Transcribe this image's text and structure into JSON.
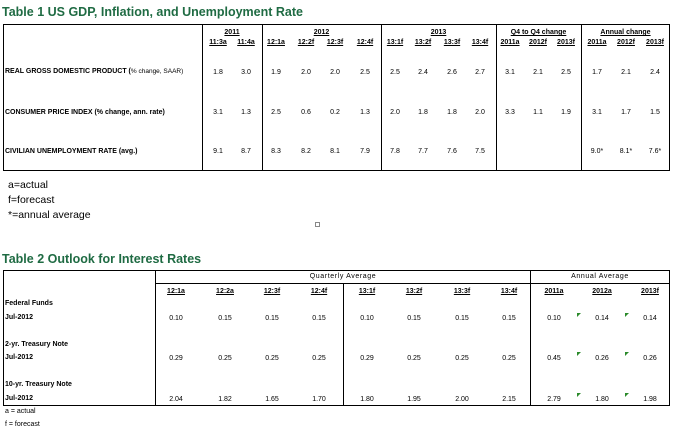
{
  "t1": {
    "title": "Table 1 US GDP, Inflation, and Unemployment Rate",
    "years": [
      "2011",
      "2012",
      "2013"
    ],
    "q4_group": "Q4 to Q4 change",
    "annual_group": "Annual change",
    "cols": [
      "11:3a",
      "11:4a",
      "12:1a",
      "12:2f",
      "12:3f",
      "12:4f",
      "13:1f",
      "13:2f",
      "13:3f",
      "13:4f",
      "2011a",
      "2012f",
      "2013f",
      "2011a",
      "2012f",
      "2013f"
    ],
    "rows": [
      {
        "label": "REAL GROSS DOMESTIC PRODUCT (",
        "sub": "% change, SAAR)",
        "values": [
          "1.8",
          "3.0",
          "1.9",
          "2.0",
          "2.0",
          "2.5",
          "2.5",
          "2.4",
          "2.6",
          "2.7",
          "3.1",
          "2.1",
          "2.5",
          "1.7",
          "2.1",
          "2.4"
        ]
      },
      {
        "label": "CONSUMER PRICE INDEX (% change, ann. rate)",
        "sub": "",
        "values": [
          "3.1",
          "1.3",
          "2.5",
          "0.6",
          "0.2",
          "1.3",
          "2.0",
          "1.8",
          "1.8",
          "2.0",
          "3.3",
          "1.1",
          "1.9",
          "3.1",
          "1.7",
          "1.5"
        ]
      },
      {
        "label": "CIVILIAN UNEMPLOYMENT RATE (avg.)",
        "sub": "",
        "values": [
          "9.1",
          "8.7",
          "8.3",
          "8.2",
          "8.1",
          "7.9",
          "7.8",
          "7.7",
          "7.6",
          "7.5",
          "",
          "",
          "",
          "9.0*",
          "8.1*",
          "7.6*"
        ]
      }
    ],
    "notes": [
      "a=actual",
      "f=forecast",
      "*=annual average"
    ]
  },
  "t2": {
    "title": "Table 2 Outlook for Interest Rates",
    "quarterly_group": "Quarterly Average",
    "annual_group": "Annual Average",
    "cols": [
      "12:1a",
      "12:2a",
      "12:3f",
      "12:4f",
      "13:1f",
      "13:2f",
      "13:3f",
      "13:4f",
      "2011a",
      "2012a",
      "2013f"
    ],
    "rows": [
      {
        "label": "Federal Funds",
        "sub": "Jul-2012",
        "values": [
          "0.10",
          "0.15",
          "0.15",
          "0.15",
          "0.10",
          "0.15",
          "0.15",
          "0.15",
          "0.10",
          "0.14",
          "0.14"
        ]
      },
      {
        "label": "2-yr. Treasury Note",
        "sub": "Jul-2012",
        "values": [
          "0.29",
          "0.25",
          "0.25",
          "0.25",
          "0.29",
          "0.25",
          "0.25",
          "0.25",
          "0.45",
          "0.26",
          "0.26"
        ]
      },
      {
        "label": "10-yr. Treasury Note",
        "sub": "Jul-2012",
        "values": [
          "2.04",
          "1.82",
          "1.65",
          "1.70",
          "1.80",
          "1.95",
          "2.00",
          "2.15",
          "2.79",
          "1.80",
          "1.98"
        ]
      }
    ],
    "notes": [
      "a = actual",
      "f = forecast"
    ]
  }
}
